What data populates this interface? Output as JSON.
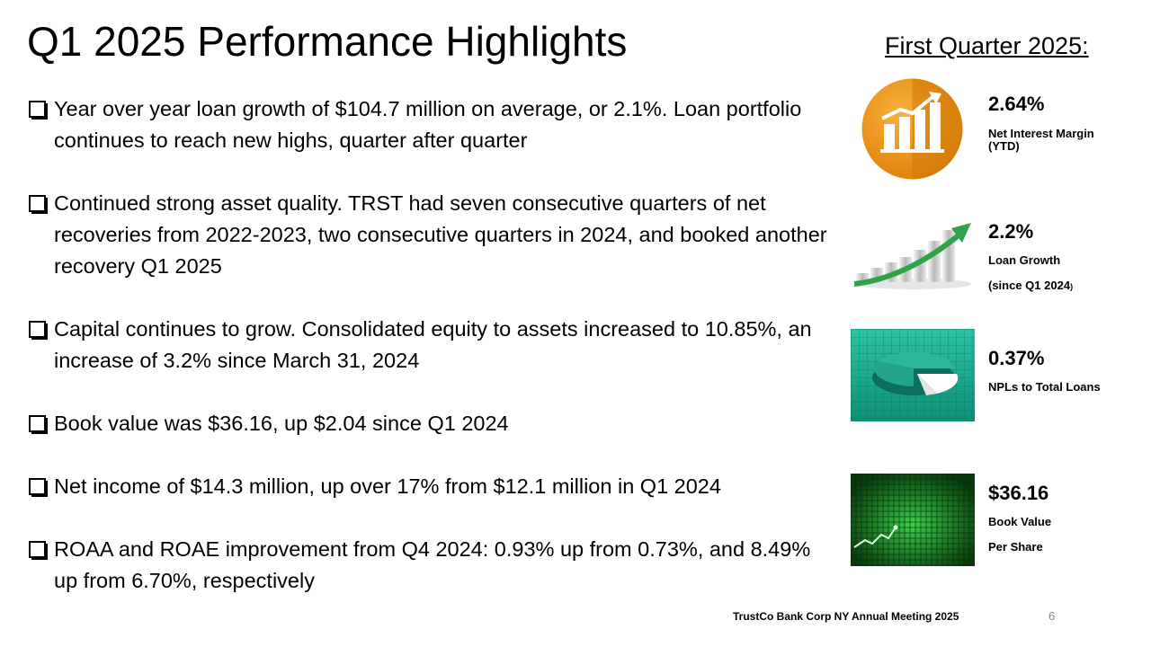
{
  "title": "Q1 2025 Performance Highlights",
  "side_header": "First Quarter 2025:",
  "bullets": [
    "Year over year loan growth of $104.7 million on average, or 2.1%.  Loan portfolio continues to reach new highs, quarter after quarter",
    "Continued strong asset quality. TRST had seven consecutive quarters of net recoveries from 2022-2023, two consecutive quarters in 2024, and booked another recovery Q1 2025",
    "Capital continues to grow. Consolidated equity to assets increased to 10.85%, an increase of 3.2% since March 31, 2024",
    "Book value was $36.16, up $2.04 since Q1 2024",
    "Net income of $14.3 million, up over 17% from $12.1 million in Q1 2024",
    "ROAA and ROAE improvement from Q4 2024: 0.93% up from 0.73%, and 8.49% up from 6.70%, respectively"
  ],
  "stats": [
    {
      "value": "2.64%",
      "label": "Net Interest Margin (YTD)",
      "icon": "bar-chart-growth-icon"
    },
    {
      "value": "2.2%",
      "label_line1": "Loan Growth",
      "label_line2": "(since Q1 2024",
      "label_close": ")",
      "icon": "rising-bars-arrow-icon"
    },
    {
      "value": "0.37%",
      "label": "NPLs to Total Loans",
      "icon": "pie-chart-icon"
    },
    {
      "value": "$36.16",
      "label_line1": "Book Value",
      "label_line2": "Per Share",
      "icon": "stock-line-icon"
    }
  ],
  "footer": "TrustCo Bank Corp NY Annual Meeting 2025",
  "page_number": "6",
  "colors": {
    "orange": "#F0950E",
    "green": "#2FA24A",
    "teal": "#1FA98F",
    "dark_green": "#0A3A10"
  }
}
